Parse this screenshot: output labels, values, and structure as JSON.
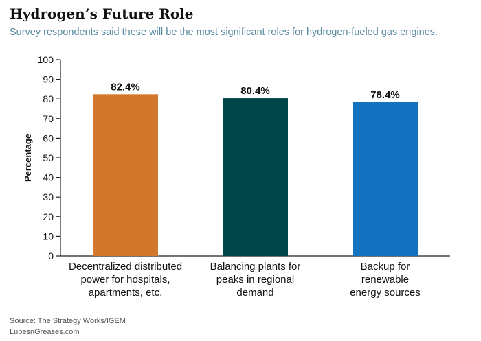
{
  "title": "Hydrogen’s Future Role",
  "subtitle": "Survey respondents said these will be the most significant roles for hydrogen-fueled gas engines.",
  "source": "Source: The Strategy Works/IGEM",
  "site": "LubesnGreases.com",
  "chart_data": {
    "type": "bar",
    "categories": [
      [
        "Decentralized distributed",
        "power for hospitals,",
        "apartments, etc."
      ],
      [
        "Balancing plants for",
        "peaks in regional",
        "demand"
      ],
      [
        "Backup for",
        "renewable",
        "energy sources"
      ]
    ],
    "values": [
      82.4,
      80.4,
      78.4
    ],
    "data_labels": [
      "82.4%",
      "80.4%",
      "78.4%"
    ],
    "colors": [
      "#d1782c",
      "#00474a",
      "#1473c0"
    ],
    "ylabel": "Percentage",
    "ylim": [
      0,
      100
    ],
    "yticks": [
      0,
      10,
      20,
      30,
      40,
      50,
      60,
      70,
      80,
      90,
      100
    ],
    "grid": false
  }
}
